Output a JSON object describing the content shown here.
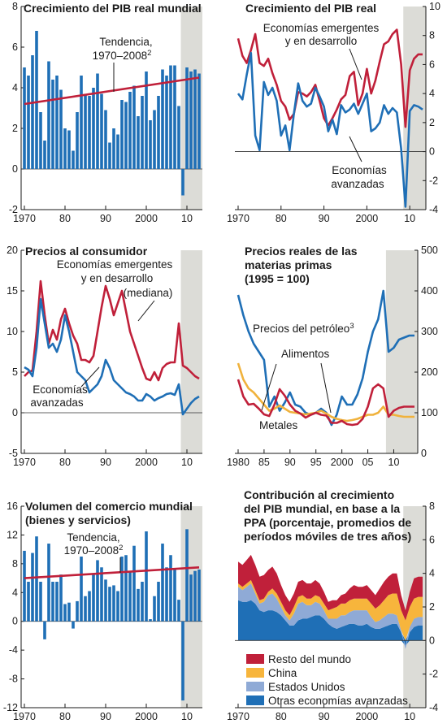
{
  "chart_data": [
    {
      "id": "p1",
      "type": "bar",
      "title": "Crecimiento del PIB real mundial",
      "x_start": 1970,
      "ylim": [
        -2,
        8
      ],
      "y_ticks": [
        "8",
        "6",
        "4",
        "2",
        "0",
        "-2"
      ],
      "x_ticks": [
        "1970",
        "80",
        "90",
        "2000",
        "10"
      ],
      "projection_shaded_from": 2008.5,
      "series": [
        {
          "name": "Crecimiento",
          "kind": "bar",
          "color": "#1f6fb6",
          "values": [
            5.0,
            4.6,
            5.6,
            6.8,
            2.8,
            1.4,
            5.3,
            4.4,
            4.6,
            3.9,
            2.0,
            1.9,
            0.9,
            2.8,
            4.6,
            3.7,
            3.6,
            4.0,
            4.7,
            3.7,
            2.9,
            1.3,
            2.0,
            1.7,
            3.4,
            3.3,
            3.8,
            4.1,
            2.6,
            3.6,
            4.8,
            2.4,
            2.9,
            3.6,
            4.9,
            4.6,
            5.1,
            5.1,
            3.1,
            -1.3,
            5.0,
            4.8,
            4.9,
            4.7
          ]
        },
        {
          "name": "Tendencia, 1970–2008",
          "kind": "line",
          "color": "#c0203a",
          "values": [
            3.2,
            4.5
          ]
        }
      ],
      "annotations": [
        {
          "text": "Tendencia,",
          "sup": ""
        },
        {
          "text": "1970–2008",
          "sup": "2"
        }
      ]
    },
    {
      "id": "p2",
      "type": "line",
      "title": "Crecimiento del PIB real",
      "x_start": 1970,
      "ylim": [
        -4,
        10
      ],
      "y_ticks": [
        "10",
        "8",
        "6",
        "4",
        "2",
        "0",
        "-2",
        "-4"
      ],
      "x_ticks": [
        "1970",
        "80",
        "90",
        "2000",
        "10"
      ],
      "projection_shaded_from": 2008.5,
      "series": [
        {
          "name": "Economías emergentes y en desarrollo",
          "color": "#c0203a",
          "values": [
            7.8,
            6.6,
            6.1,
            7.0,
            8.1,
            6.1,
            5.9,
            6.4,
            5.4,
            4.6,
            3.5,
            3.1,
            2.2,
            2.6,
            4.1,
            4.0,
            3.8,
            4.1,
            4.6,
            3.5,
            2.3,
            1.8,
            2.3,
            2.9,
            3.6,
            3.9,
            5.2,
            5.5,
            3.2,
            4.0,
            5.7,
            4.0,
            4.9,
            6.2,
            7.4,
            7.6,
            8.1,
            8.4,
            6.0,
            1.7,
            5.6,
            6.4,
            6.7,
            6.7
          ]
        },
        {
          "name": "Economías avanzadas",
          "color": "#1f6fb6",
          "values": [
            4.0,
            3.6,
            5.3,
            6.8,
            1.1,
            0.1,
            4.8,
            3.9,
            4.4,
            3.5,
            1.1,
            1.8,
            0.1,
            2.6,
            4.7,
            3.5,
            3.1,
            3.3,
            4.4,
            3.8,
            3.1,
            1.4,
            2.2,
            1.2,
            3.2,
            2.7,
            2.9,
            3.3,
            2.6,
            3.3,
            4.0,
            1.4,
            1.6,
            2.0,
            3.2,
            2.6,
            3.0,
            2.7,
            0.2,
            -3.8,
            2.8,
            3.2,
            3.1,
            2.9
          ]
        }
      ],
      "annotations": [
        {
          "text": "Economías emergentes"
        },
        {
          "text": "y en desarrollo"
        },
        {
          "text": "Economías"
        },
        {
          "text": "avanzadas"
        }
      ]
    },
    {
      "id": "p3",
      "type": "line",
      "title": "Precios al consumidor",
      "x_start": 1970,
      "ylim": [
        -5,
        20
      ],
      "y_ticks": [
        "20",
        "15",
        "10",
        "5",
        "0",
        "-5"
      ],
      "x_ticks": [
        "1970",
        "80",
        "90",
        "2000",
        "10"
      ],
      "projection_shaded_from": 2008.5,
      "series": [
        {
          "name": "Economías emergentes y en desarrollo (mediana)",
          "color": "#c0203a",
          "values": [
            4.5,
            5.0,
            5.2,
            10.0,
            16.2,
            12.0,
            8.5,
            10.2,
            9.0,
            11.5,
            12.8,
            11.0,
            9.5,
            8.5,
            6.5,
            6.5,
            6.2,
            7.0,
            10.0,
            13.0,
            15.6,
            14.0,
            12.0,
            13.5,
            15.0,
            12.5,
            10.0,
            8.5,
            7.0,
            5.5,
            4.2,
            4.0,
            5.0,
            4.0,
            5.5,
            6.0,
            6.2,
            6.2,
            11.0,
            5.8,
            5.5,
            5.0,
            4.5,
            4.2
          ]
        },
        {
          "name": "Economías avanzadas",
          "color": "#1f6fb6",
          "values": [
            5.6,
            5.3,
            4.5,
            8.0,
            14.0,
            11.0,
            8.0,
            8.5,
            7.5,
            9.0,
            12.0,
            10.0,
            7.5,
            5.0,
            4.5,
            4.0,
            2.5,
            3.0,
            3.5,
            4.5,
            6.5,
            5.5,
            4.0,
            3.5,
            3.0,
            2.5,
            2.3,
            2.0,
            1.5,
            1.5,
            2.3,
            2.0,
            1.5,
            1.8,
            2.0,
            2.3,
            2.4,
            2.2,
            3.5,
            -0.2,
            0.5,
            1.2,
            1.7,
            2.0
          ]
        }
      ],
      "annotations": [
        {
          "text": "Economías emergentes"
        },
        {
          "text": "y en desarrollo"
        },
        {
          "text": "(mediana)"
        },
        {
          "text": "Economías"
        },
        {
          "text": "avanzadas"
        }
      ]
    },
    {
      "id": "p4",
      "type": "line",
      "title": "Precios reales de las materias primas (1995 = 100)",
      "title_lines": [
        "Precios reales de las",
        "materias primas",
        "(1995 = 100)"
      ],
      "x_start": 1980,
      "ylim": [
        0,
        500
      ],
      "y_ticks": [
        "500",
        "400",
        "300",
        "200",
        "100",
        "0"
      ],
      "x_ticks": [
        "1980",
        "85",
        "90",
        "95",
        "2000",
        "05",
        "10"
      ],
      "projection_shaded_from": 2008.5,
      "series": [
        {
          "name": "Precios del petróleo",
          "color": "#1f6fb6",
          "values": [
            390,
            340,
            300,
            270,
            250,
            230,
            115,
            140,
            105,
            125,
            150,
            120,
            115,
            100,
            95,
            100,
            110,
            100,
            70,
            95,
            140,
            120,
            120,
            145,
            185,
            250,
            300,
            330,
            400,
            250,
            260,
            280,
            285,
            290,
            290
          ]
        },
        {
          "name": "Alimentos",
          "color": "#f0b23c",
          "values": [
            222,
            182,
            160,
            150,
            135,
            120,
            105,
            110,
            118,
            110,
            102,
            100,
            98,
            96,
            98,
            100,
            105,
            98,
            90,
            85,
            82,
            80,
            82,
            85,
            90,
            95,
            95,
            100,
            115,
            95,
            95,
            92,
            90,
            90,
            90
          ]
        },
        {
          "name": "Metales",
          "color": "#c0203a",
          "values": [
            182,
            140,
            120,
            122,
            110,
            96,
            92,
            120,
            158,
            142,
            120,
            105,
            98,
            88,
            95,
            100,
            95,
            93,
            75,
            75,
            80,
            72,
            70,
            72,
            85,
            115,
            160,
            170,
            160,
            90,
            105,
            112,
            115,
            115,
            115
          ]
        }
      ],
      "annotations": [
        {
          "text": "Precios del petróleo",
          "sup": "3"
        },
        {
          "text": "Alimentos"
        },
        {
          "text": "Metales"
        }
      ]
    },
    {
      "id": "p5",
      "type": "bar",
      "title": "Volumen del comercio mundial (bienes y servicios)",
      "title_lines": [
        "Volumen del comercio mundial",
        "(bienes y servicios)"
      ],
      "x_start": 1970,
      "ylim": [
        -12,
        16
      ],
      "y_ticks": [
        "16",
        "12",
        "8",
        "4",
        "0",
        "-4",
        "-8",
        "-12"
      ],
      "x_ticks": [
        "1970",
        "80",
        "90",
        "2000",
        "10"
      ],
      "projection_shaded_from": 2008.5,
      "series": [
        {
          "name": "Volumen",
          "kind": "bar",
          "color": "#1f6fb6",
          "values": [
            9.8,
            5.5,
            9.5,
            11.8,
            5.5,
            -2.5,
            10.8,
            5.5,
            5.5,
            6.5,
            2.4,
            2.6,
            -1.0,
            2.8,
            9.0,
            3.5,
            4.2,
            6.5,
            8.5,
            7.5,
            5.8,
            4.8,
            5.0,
            4.2,
            9.0,
            9.2,
            7.0,
            10.5,
            4.5,
            5.5,
            12.5,
            0.3,
            3.5,
            5.5,
            10.8,
            7.5,
            9.2,
            7.2,
            3.0,
            -11.0,
            12.8,
            6.5,
            7.0,
            7.2
          ]
        },
        {
          "name": "Tendencia, 1970–2008",
          "kind": "line",
          "color": "#c0203a",
          "values": [
            6.0,
            7.5
          ]
        }
      ],
      "annotations": [
        {
          "text": "Tendencia,",
          "sup": ""
        },
        {
          "text": "1970–2008",
          "sup": "2"
        }
      ]
    },
    {
      "id": "p6",
      "type": "area",
      "title": "Contribución al crecimiento del PIB mundial, en base a la PPA (porcentaje, promedios de períodos móviles de tres años)",
      "title_lines": [
        "Contribución al crecimiento",
        "del PIB mundial, en base a la",
        "PPA (porcentaje, promedios de",
        "períodos móviles de tres años)"
      ],
      "x_start": 1970,
      "ylim": [
        -4,
        8
      ],
      "y_ticks": [
        "8",
        "6",
        "4",
        "2",
        "0",
        "-2",
        "-4"
      ],
      "x_ticks": [
        "1970",
        "80",
        "90",
        "2000",
        "10"
      ],
      "projection_shaded_from": 2008.5,
      "stack_order": [
        "Otras economías avanzadas",
        "Estados Unidos",
        "China",
        "Resto del mundo"
      ],
      "series": [
        {
          "name": "Resto del mundo",
          "color": "#c0203a",
          "values": [
            1.3,
            1.3,
            1.4,
            1.5,
            1.5,
            1.4,
            1.4,
            1.3,
            1.3,
            1.2,
            1.0,
            0.9,
            0.8,
            0.8,
            0.9,
            0.9,
            0.9,
            0.9,
            0.9,
            0.8,
            0.7,
            0.5,
            0.5,
            0.4,
            0.5,
            0.6,
            0.7,
            0.8,
            0.7,
            0.7,
            0.8,
            0.8,
            0.8,
            1.0,
            1.1,
            1.1,
            1.2,
            1.2,
            0.9,
            0.6,
            0.9,
            1.2,
            1.2,
            1.2
          ]
        },
        {
          "name": "China",
          "color": "#f7b53c",
          "values": [
            0.2,
            0.2,
            0.2,
            0.2,
            0.2,
            0.2,
            0.2,
            0.2,
            0.3,
            0.3,
            0.3,
            0.3,
            0.3,
            0.4,
            0.4,
            0.4,
            0.4,
            0.4,
            0.4,
            0.4,
            0.4,
            0.5,
            0.6,
            0.7,
            0.7,
            0.7,
            0.7,
            0.7,
            0.7,
            0.7,
            0.7,
            0.8,
            0.8,
            0.9,
            1.0,
            1.1,
            1.2,
            1.3,
            1.2,
            1.2,
            1.2,
            1.2,
            1.2,
            1.2
          ]
        },
        {
          "name": "Estados Unidos",
          "color": "#8faad6",
          "values": [
            0.8,
            0.7,
            0.9,
            1.0,
            0.6,
            0.4,
            0.6,
            0.9,
            1.0,
            0.8,
            0.5,
            0.3,
            0.3,
            0.7,
            1.0,
            1.0,
            0.8,
            0.7,
            0.8,
            0.7,
            0.5,
            0.3,
            0.5,
            0.6,
            0.7,
            0.6,
            0.7,
            0.8,
            0.9,
            0.9,
            0.8,
            0.6,
            0.4,
            0.5,
            0.6,
            0.7,
            0.6,
            0.5,
            0.1,
            -0.2,
            0.3,
            0.5,
            0.5,
            0.5
          ]
        },
        {
          "name": "Otras economías avanzadas",
          "color": "#1f6fb6",
          "values": [
            2.4,
            2.3,
            2.3,
            2.4,
            2.2,
            1.8,
            1.7,
            1.8,
            1.8,
            1.7,
            1.5,
            1.2,
            0.9,
            0.9,
            1.2,
            1.3,
            1.3,
            1.4,
            1.5,
            1.5,
            1.3,
            1.0,
            0.8,
            0.7,
            0.8,
            0.9,
            1.0,
            1.0,
            0.9,
            0.9,
            1.0,
            0.8,
            0.7,
            0.7,
            0.8,
            0.9,
            1.0,
            1.0,
            0.5,
            -0.3,
            0.5,
            0.8,
            0.9,
            0.9
          ]
        }
      ]
    }
  ]
}
